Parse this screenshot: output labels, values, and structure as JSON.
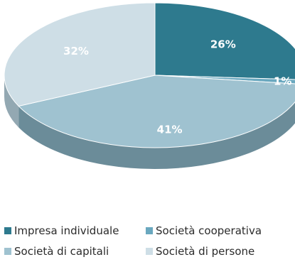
{
  "chart_data": {
    "type": "pie",
    "style": "3d",
    "categories": [
      "Impresa individuale",
      "Società cooperativa",
      "Società di capitali",
      "Società di persone"
    ],
    "values": [
      26,
      1,
      41,
      32
    ],
    "data_labels": [
      "26%",
      "1%",
      "41%",
      "32%"
    ],
    "colors": [
      "#2e7a8e",
      "#6aa8bf",
      "#9fc2d0",
      "#cedee6"
    ],
    "side_colors": [
      "#1f5666",
      "#46798a",
      "#6b8c99",
      "#93a8b2"
    ],
    "legend_position": "bottom",
    "title": ""
  }
}
